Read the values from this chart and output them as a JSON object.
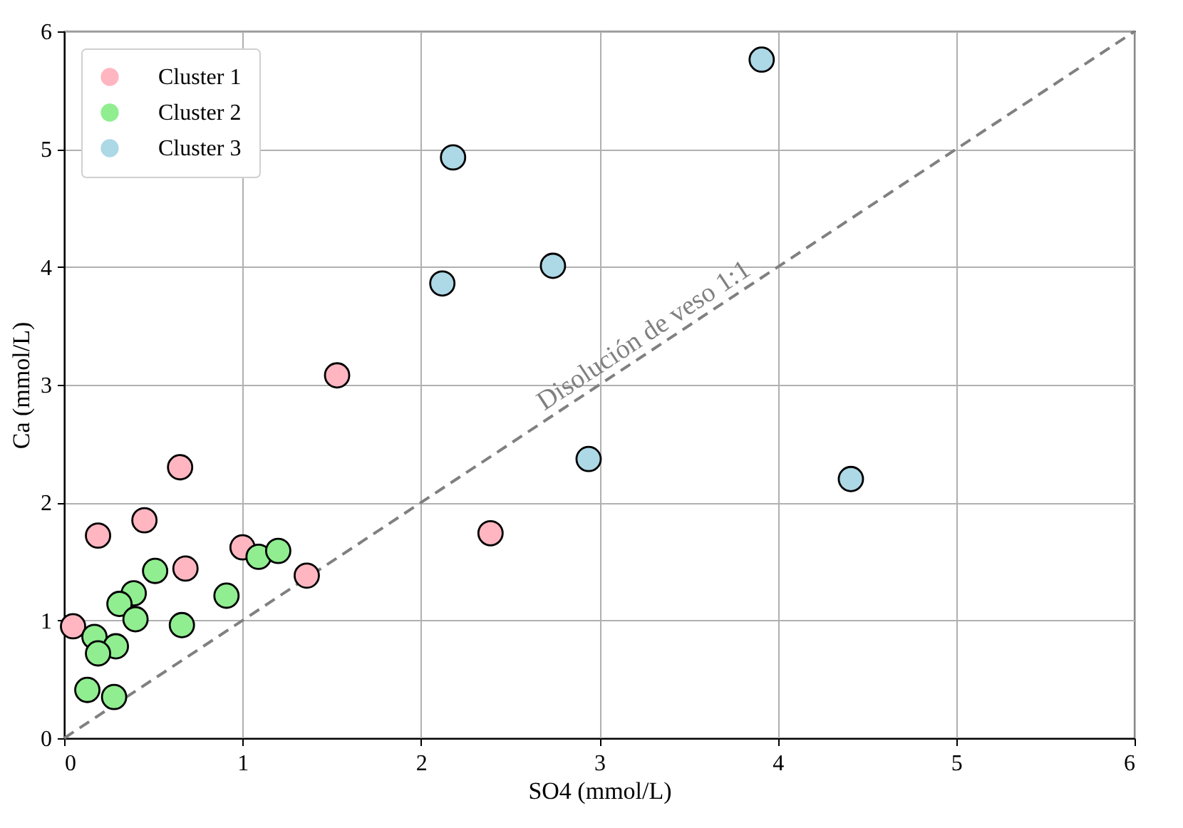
{
  "chart_data": {
    "type": "scatter",
    "xlabel": "SO4 (mmol/L)",
    "ylabel": "Ca (mmol/L)",
    "xlim": [
      0,
      6
    ],
    "ylim": [
      0,
      6
    ],
    "xticks": [
      0,
      1,
      2,
      3,
      4,
      5,
      6
    ],
    "yticks": [
      0,
      1,
      2,
      3,
      4,
      5,
      6
    ],
    "grid": true,
    "legend": "top left",
    "marker": "circle",
    "series": [
      {
        "name": "Cluster 1",
        "color": "#ffb6c1",
        "x": [
          0.65,
          0.45,
          0.19,
          1.0,
          0.68,
          1.36,
          0.05,
          2.39,
          1.53
        ],
        "values": [
          2.3,
          1.85,
          1.72,
          1.62,
          1.44,
          1.38,
          0.95,
          1.74,
          3.08
        ]
      },
      {
        "name": "Cluster 2",
        "color": "#90ee90",
        "x": [
          0.51,
          0.39,
          0.31,
          0.4,
          0.66,
          0.91,
          1.09,
          1.2,
          0.17,
          0.29,
          0.19,
          0.13,
          0.28
        ],
        "values": [
          1.42,
          1.23,
          1.14,
          1.01,
          0.96,
          1.21,
          1.54,
          1.59,
          0.86,
          0.78,
          0.72,
          0.41,
          0.35
        ]
      },
      {
        "name": "Cluster 3",
        "color": "#add8e6",
        "x": [
          3.91,
          2.18,
          2.12,
          2.74,
          2.94,
          4.41
        ],
        "values": [
          5.76,
          4.93,
          3.86,
          4.01,
          2.37,
          2.2
        ]
      },
      {
        "type": "line",
        "color": "#808080",
        "line_style": "dashed",
        "marker": "none",
        "x": [
          0,
          6
        ],
        "values": [
          0,
          6
        ]
      }
    ],
    "annotations": [
      {
        "text": "Disolución de veso 1:1",
        "x": 3.3,
        "y": 3.3
      }
    ]
  }
}
